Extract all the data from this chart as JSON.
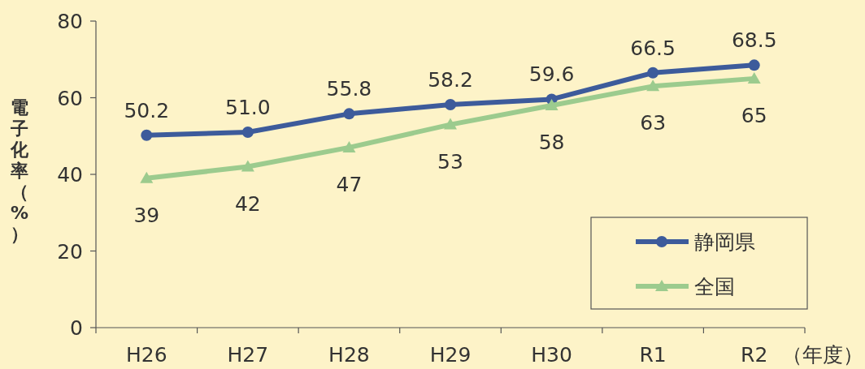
{
  "chart_data": {
    "type": "line",
    "categories": [
      "H26",
      "H27",
      "H28",
      "H29",
      "H30",
      "R1",
      "R2"
    ],
    "xlabel": "（年度）",
    "ylabel": "電子化率（%）",
    "ylim": [
      0,
      80
    ],
    "yticks": [
      0,
      20,
      40,
      60,
      80
    ],
    "grid": false,
    "legend": "bottom right",
    "series": [
      {
        "name": "静岡県",
        "color": "#3d5b9b",
        "marker": "circle",
        "values": [
          50.2,
          51.0,
          55.8,
          58.2,
          59.6,
          66.5,
          68.5
        ],
        "value_labels": [
          "50.2",
          "51.0",
          "55.8",
          "58.2",
          "59.6",
          "66.5",
          "68.5"
        ]
      },
      {
        "name": "全国",
        "color": "#9ccb8e",
        "marker": "triangle",
        "values": [
          39,
          42,
          47,
          53,
          58,
          63,
          65
        ],
        "value_labels": [
          "39",
          "42",
          "47",
          "53",
          "58",
          "63",
          "65"
        ]
      }
    ]
  }
}
